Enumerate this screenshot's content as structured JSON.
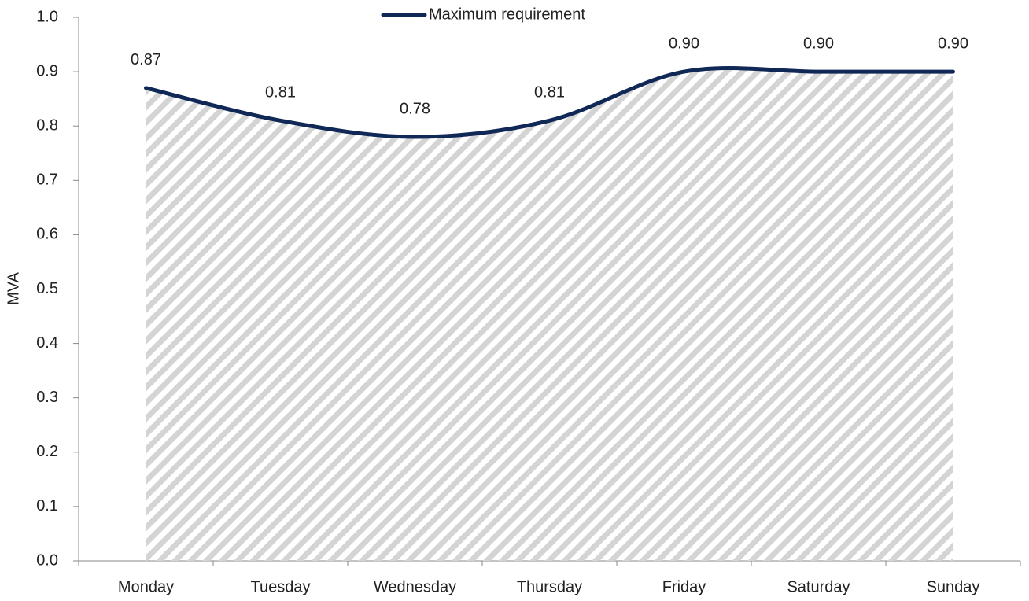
{
  "chart_data": {
    "type": "line",
    "y_label": "MVA",
    "categories": [
      "Monday",
      "Tuesday",
      "Wednesday",
      "Thursday",
      "Friday",
      "Saturday",
      "Sunday"
    ],
    "series": [
      {
        "name": "Maximum requirement",
        "color": "#0f2856",
        "values": [
          0.87,
          0.81,
          0.78,
          0.81,
          0.9,
          0.9,
          0.9
        ],
        "value_labels": [
          "0.87",
          "0.81",
          "0.78",
          "0.81",
          "0.90",
          "0.90",
          "0.90"
        ]
      }
    ],
    "ylim": [
      0,
      1
    ],
    "yticks": [
      {
        "value": 0,
        "label": "0.0"
      },
      0.1,
      0.2,
      0.3,
      0.4,
      0.5,
      0.6,
      0.7,
      0.8,
      0.9,
      {
        "value": 1,
        "label": "1.0"
      }
    ],
    "smooth": true,
    "area_fill": "hatch",
    "hatch_color": "#d4d4d4",
    "legend": "top"
  }
}
